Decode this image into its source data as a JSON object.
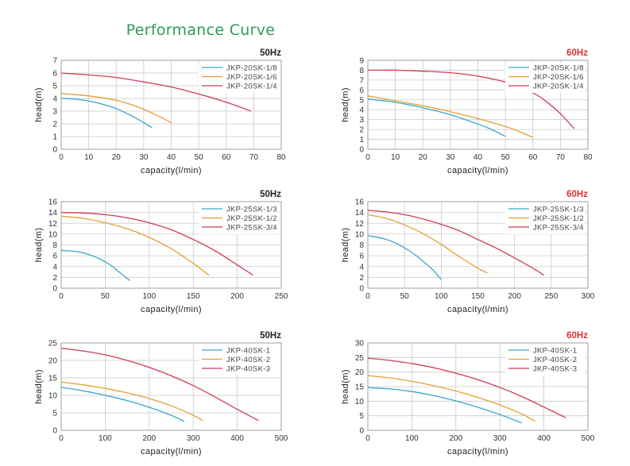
{
  "page": {
    "title": "Performance Curve"
  },
  "colors": {
    "blue": "#3aa6c9",
    "orange": "#e3a032",
    "red": "#cf3b55",
    "title_green": "#2f9a57",
    "freq_60": "#d9322f",
    "freq_50": "#222222"
  },
  "chart_data": [
    {
      "type": "line",
      "frequency": "50Hz",
      "xlabel": "capacity(l/min)",
      "ylabel": "head(m)",
      "xlim": [
        0,
        80
      ],
      "ylim": [
        0,
        7
      ],
      "grid": true,
      "legend": "top-right",
      "xticks": [
        "0",
        "10",
        "20",
        "30",
        "40",
        "50",
        "60",
        "70",
        "80"
      ],
      "yticks": [
        "0",
        "1",
        "2",
        "3",
        "4",
        "5",
        "6",
        "7"
      ],
      "series": [
        {
          "name": "JKP-20SK-1/8",
          "color": "#3aa6c9",
          "x": [
            0,
            5,
            10,
            15,
            20,
            25,
            30,
            33
          ],
          "y": [
            4.0,
            3.95,
            3.8,
            3.55,
            3.2,
            2.7,
            2.1,
            1.7
          ]
        },
        {
          "name": "JKP-20SK-1/6",
          "color": "#e3a032",
          "x": [
            0,
            5,
            10,
            15,
            20,
            25,
            30,
            35,
            40
          ],
          "y": [
            4.4,
            4.3,
            4.2,
            4.05,
            3.85,
            3.55,
            3.15,
            2.65,
            2.1
          ]
        },
        {
          "name": "JKP-20SK-1/4",
          "color": "#cf3b55",
          "x": [
            0,
            10,
            20,
            30,
            40,
            50,
            60,
            69
          ],
          "y": [
            6.0,
            5.85,
            5.65,
            5.3,
            4.9,
            4.35,
            3.7,
            3.0
          ]
        }
      ]
    },
    {
      "type": "line",
      "frequency": "60Hz",
      "xlabel": "capacity(l/min)",
      "ylabel": "head(m)",
      "xlim": [
        0,
        80
      ],
      "ylim": [
        0,
        9
      ],
      "grid": true,
      "legend": "top-right",
      "xticks": [
        "0",
        "10",
        "20",
        "30",
        "40",
        "50",
        "60",
        "70",
        "80"
      ],
      "yticks": [
        "0",
        "1",
        "2",
        "3",
        "4",
        "5",
        "6",
        "7",
        "8",
        "9"
      ],
      "series": [
        {
          "name": "JKP-20SK-1/8",
          "color": "#3aa6c9",
          "x": [
            0,
            10,
            20,
            30,
            40,
            45,
            50
          ],
          "y": [
            5.1,
            4.75,
            4.2,
            3.5,
            2.55,
            2.0,
            1.3
          ]
        },
        {
          "name": "JKP-20SK-1/6",
          "color": "#e3a032",
          "x": [
            0,
            10,
            20,
            30,
            40,
            50,
            55,
            60
          ],
          "y": [
            5.4,
            4.9,
            4.4,
            3.8,
            3.1,
            2.3,
            1.8,
            1.2
          ]
        },
        {
          "name": "JKP-20SK-1/4",
          "color": "#cf3b55",
          "x": [
            0,
            10,
            20,
            30,
            40,
            50,
            60,
            65,
            70,
            75
          ],
          "y": [
            8.0,
            8.0,
            7.9,
            7.75,
            7.4,
            6.8,
            5.7,
            4.8,
            3.6,
            2.1
          ]
        }
      ]
    },
    {
      "type": "line",
      "frequency": "50Hz",
      "xlabel": "capacity(l/min)",
      "ylabel": "head(m)",
      "xlim": [
        0,
        250
      ],
      "ylim": [
        0,
        16
      ],
      "grid": true,
      "legend": "top-right",
      "xticks": [
        "0",
        "50",
        "100",
        "150",
        "200",
        "250"
      ],
      "yticks": [
        "0",
        "2",
        "4",
        "6",
        "8",
        "10",
        "12",
        "14",
        "16"
      ],
      "series": [
        {
          "name": "JKP-25SK-1/3",
          "color": "#3aa6c9",
          "x": [
            0,
            20,
            40,
            55,
            65,
            72,
            78
          ],
          "y": [
            7.0,
            6.7,
            5.7,
            4.4,
            3.1,
            2.2,
            1.4
          ]
        },
        {
          "name": "JKP-25SK-1/2",
          "color": "#e3a032",
          "x": [
            0,
            25,
            50,
            75,
            100,
            125,
            150,
            168
          ],
          "y": [
            13.3,
            12.9,
            12.1,
            11.0,
            9.4,
            7.3,
            4.6,
            2.4
          ]
        },
        {
          "name": "JKP-25SK-3/4",
          "color": "#cf3b55",
          "x": [
            0,
            25,
            50,
            75,
            100,
            125,
            150,
            175,
            200,
            218
          ],
          "y": [
            14.0,
            13.9,
            13.6,
            13.0,
            12.1,
            10.8,
            9.0,
            6.9,
            4.3,
            2.4
          ]
        }
      ]
    },
    {
      "type": "line",
      "frequency": "60Hz",
      "xlabel": "capacity(l/min)",
      "ylabel": "head(m)",
      "xlim": [
        0,
        300
      ],
      "ylim": [
        0,
        16
      ],
      "grid": true,
      "legend": "top-right",
      "xticks": [
        "0",
        "50",
        "100",
        "150",
        "200",
        "250",
        "300"
      ],
      "yticks": [
        "0",
        "2",
        "4",
        "6",
        "8",
        "10",
        "12",
        "14",
        "16"
      ],
      "series": [
        {
          "name": "JKP-25SK-1/3",
          "color": "#3aa6c9",
          "x": [
            0,
            20,
            40,
            60,
            75,
            90,
            100
          ],
          "y": [
            9.7,
            9.2,
            8.2,
            6.6,
            5.0,
            3.2,
            1.6
          ]
        },
        {
          "name": "JKP-25SK-1/2",
          "color": "#e3a032",
          "x": [
            0,
            25,
            50,
            75,
            100,
            125,
            150,
            163
          ],
          "y": [
            13.6,
            12.9,
            11.7,
            10.1,
            8.1,
            5.8,
            3.7,
            2.8
          ]
        },
        {
          "name": "JKP-25SK-3/4",
          "color": "#cf3b55",
          "x": [
            0,
            25,
            50,
            75,
            100,
            125,
            150,
            175,
            200,
            225,
            240
          ],
          "y": [
            14.4,
            14.1,
            13.6,
            12.8,
            11.8,
            10.6,
            9.0,
            7.4,
            5.6,
            3.7,
            2.4
          ]
        }
      ]
    },
    {
      "type": "line",
      "frequency": "50Hz",
      "xlabel": "capacity(l/min)",
      "ylabel": "head(m)",
      "xlim": [
        0,
        500
      ],
      "ylim": [
        0,
        25
      ],
      "grid": true,
      "legend": "top-right",
      "xticks": [
        "0",
        "100",
        "200",
        "300",
        "400",
        "500"
      ],
      "yticks": [
        "0",
        "5",
        "10",
        "15",
        "20",
        "25"
      ],
      "series": [
        {
          "name": "JKP-40SK-1",
          "color": "#3aa6c9",
          "x": [
            0,
            50,
            100,
            150,
            200,
            250,
            280
          ],
          "y": [
            12.3,
            11.3,
            10.0,
            8.5,
            6.6,
            4.3,
            2.5
          ]
        },
        {
          "name": "JKP-40SK-2",
          "color": "#e3a032",
          "x": [
            0,
            50,
            100,
            150,
            200,
            250,
            300,
            322
          ],
          "y": [
            13.8,
            13.0,
            12.0,
            10.7,
            9.1,
            7.0,
            4.3,
            2.8
          ]
        },
        {
          "name": "JKP-40SK-3",
          "color": "#cf3b55",
          "x": [
            0,
            50,
            100,
            150,
            200,
            250,
            300,
            350,
            400,
            448
          ],
          "y": [
            23.5,
            22.7,
            21.6,
            20.0,
            18.0,
            15.6,
            12.8,
            9.5,
            6.0,
            2.8
          ]
        }
      ]
    },
    {
      "type": "line",
      "frequency": "60Hz",
      "xlabel": "capacity(l/min)",
      "ylabel": "head(m)",
      "xlim": [
        0,
        500
      ],
      "ylim": [
        0,
        30
      ],
      "grid": true,
      "legend": "top-right",
      "xticks": [
        "0",
        "100",
        "200",
        "300",
        "400",
        "500"
      ],
      "yticks": [
        "0",
        "5",
        "10",
        "15",
        "20",
        "25",
        "30"
      ],
      "series": [
        {
          "name": "JKP-40SK-1",
          "color": "#3aa6c9",
          "x": [
            0,
            50,
            100,
            150,
            200,
            250,
            300,
            350
          ],
          "y": [
            14.7,
            14.2,
            13.3,
            11.9,
            10.1,
            7.9,
            5.4,
            2.5
          ]
        },
        {
          "name": "JKP-40SK-2",
          "color": "#e3a032",
          "x": [
            0,
            50,
            100,
            150,
            200,
            250,
            300,
            350,
            380
          ],
          "y": [
            18.8,
            18.0,
            16.8,
            15.3,
            13.5,
            11.3,
            8.7,
            5.6,
            3.1
          ]
        },
        {
          "name": "JKP-40SK-3",
          "color": "#cf3b55",
          "x": [
            0,
            50,
            100,
            150,
            200,
            250,
            300,
            350,
            400,
            450
          ],
          "y": [
            24.8,
            24.0,
            22.9,
            21.5,
            19.6,
            17.4,
            14.7,
            11.6,
            8.0,
            4.3
          ]
        }
      ]
    }
  ]
}
